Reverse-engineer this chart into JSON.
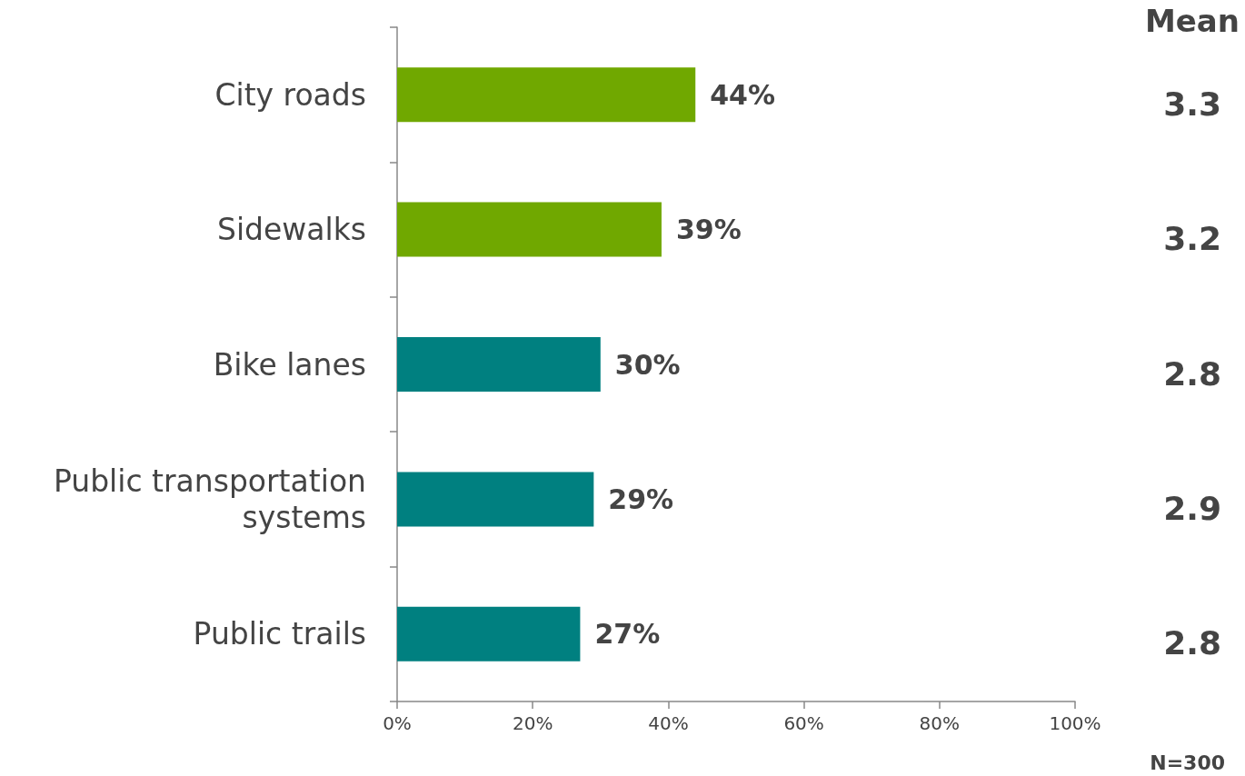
{
  "chart_data": {
    "type": "bar",
    "orientation": "horizontal",
    "categories": [
      "City roads",
      "Sidewalks",
      "Bike lanes",
      "Public transportation\nsystems",
      "Public trails"
    ],
    "values": [
      44,
      39,
      30,
      29,
      27
    ],
    "colors": [
      "#70a800",
      "#70a800",
      "#008080",
      "#008080",
      "#008080"
    ],
    "value_labels": [
      "44%",
      "39%",
      "30%",
      "29%",
      "27%"
    ],
    "xlim": [
      0,
      100
    ],
    "xticks": [
      {
        "value": 0,
        "label": "0%"
      },
      {
        "value": 20,
        "label": "20%"
      },
      {
        "value": 40,
        "label": "40%"
      },
      {
        "value": 60,
        "label": "60%"
      },
      {
        "value": 80,
        "label": "80%"
      },
      {
        "value": 100,
        "label": "100%"
      }
    ],
    "grid": false,
    "annotations": [
      "Mean",
      "3.3",
      "3.2",
      "2.8",
      "2.9",
      "2.8",
      "N=300"
    ]
  }
}
